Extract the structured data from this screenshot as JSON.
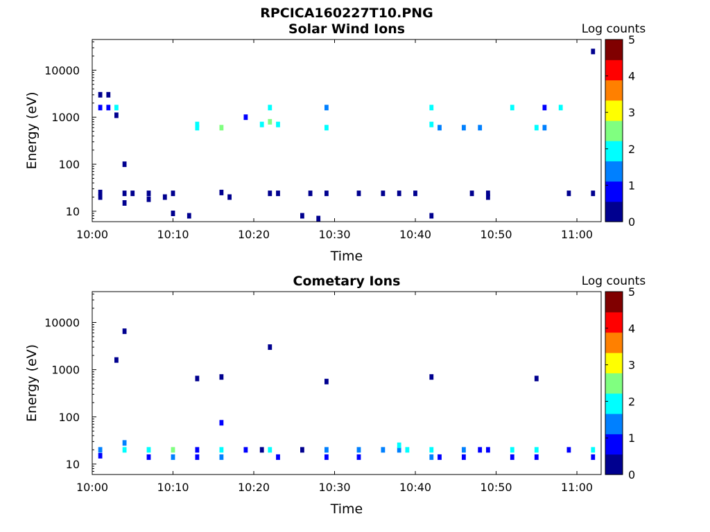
{
  "figure_title": "RPCICA160227T10.PNG",
  "palette": [
    "#00008f",
    "#0000ff",
    "#0080ff",
    "#00ffff",
    "#80ff80",
    "#ffff00",
    "#ff8000",
    "#ff0000",
    "#800000"
  ],
  "chart_data": [
    {
      "type": "heatmap",
      "title": "Solar Wind Ions",
      "xlabel": "Time",
      "ylabel": "Energy (eV)",
      "xticks": [
        "10:00",
        "10:10",
        "10:20",
        "10:30",
        "10:40",
        "10:50",
        "11:00"
      ],
      "yticks": [
        "10",
        "100",
        "1000",
        "10000"
      ],
      "yscale": "log",
      "xlim": [
        "10:00",
        "11:03"
      ],
      "ylim": [
        6,
        45000
      ],
      "colorbar_label": "Log counts",
      "colorbar_ticks": [
        "0",
        "1",
        "2",
        "3",
        "4",
        "5"
      ],
      "clim": [
        0,
        5
      ],
      "cells": [
        [
          "10:01",
          20,
          0.2
        ],
        [
          "10:01",
          25,
          0.3
        ],
        [
          "10:01",
          1600,
          1.0
        ],
        [
          "10:01",
          3000,
          0.2
        ],
        [
          "10:02",
          3000,
          0.2
        ],
        [
          "10:02",
          1600,
          0.8
        ],
        [
          "10:03",
          1600,
          1.9
        ],
        [
          "10:03",
          1100,
          0.3
        ],
        [
          "10:04",
          24,
          0.2
        ],
        [
          "10:04",
          15,
          0.2
        ],
        [
          "10:04",
          100,
          0.3
        ],
        [
          "10:05",
          24,
          0.5
        ],
        [
          "10:07",
          18,
          0.3
        ],
        [
          "10:07",
          24,
          0.3
        ],
        [
          "10:09",
          20,
          0.2
        ],
        [
          "10:10",
          24,
          0.5
        ],
        [
          "10:10",
          9,
          0.2
        ],
        [
          "10:12",
          8,
          0.2
        ],
        [
          "10:13",
          600,
          2.2
        ],
        [
          "10:13",
          700,
          1.8
        ],
        [
          "10:16",
          600,
          2.6
        ],
        [
          "10:16",
          25,
          0.4
        ],
        [
          "10:17",
          20,
          0.2
        ],
        [
          "10:19",
          1000,
          1.0
        ],
        [
          "10:21",
          700,
          1.7
        ],
        [
          "10:22",
          1600,
          1.9
        ],
        [
          "10:22",
          800,
          2.6
        ],
        [
          "10:22",
          24,
          0.4
        ],
        [
          "10:23",
          700,
          2.2
        ],
        [
          "10:23",
          24,
          0.5
        ],
        [
          "10:26",
          8,
          0.2
        ],
        [
          "10:27",
          24,
          0.3
        ],
        [
          "10:28",
          7,
          0.2
        ],
        [
          "10:29",
          600,
          2.0
        ],
        [
          "10:29",
          1600,
          1.4
        ],
        [
          "10:29",
          24,
          0.5
        ],
        [
          "10:33",
          24,
          0.4
        ],
        [
          "10:36",
          24,
          0.3
        ],
        [
          "10:38",
          24,
          0.4
        ],
        [
          "10:40",
          24,
          0.3
        ],
        [
          "10:42",
          1600,
          1.9
        ],
        [
          "10:42",
          700,
          2.2
        ],
        [
          "10:42",
          8,
          0.2
        ],
        [
          "10:43",
          600,
          1.5
        ],
        [
          "10:46",
          600,
          1.4
        ],
        [
          "10:47",
          24,
          0.4
        ],
        [
          "10:48",
          600,
          1.5
        ],
        [
          "10:49",
          20,
          0.2
        ],
        [
          "10:49",
          24,
          0.3
        ],
        [
          "10:52",
          1600,
          1.8
        ],
        [
          "10:55",
          600,
          2.0
        ],
        [
          "10:56",
          600,
          1.6
        ],
        [
          "10:56",
          1600,
          1.0
        ],
        [
          "10:58",
          1600,
          1.8
        ],
        [
          "10:59",
          24,
          0.3
        ],
        [
          "11:02",
          24,
          0.5
        ],
        [
          "11:02",
          25000,
          0.3
        ]
      ]
    },
    {
      "type": "heatmap",
      "title": "Cometary Ions",
      "xlabel": "Time",
      "ylabel": "Energy (eV)",
      "xticks": [
        "10:00",
        "10:10",
        "10:20",
        "10:30",
        "10:40",
        "10:50",
        "11:00"
      ],
      "yticks": [
        "10",
        "100",
        "1000",
        "10000"
      ],
      "yscale": "log",
      "xlim": [
        "10:00",
        "11:03"
      ],
      "ylim": [
        6,
        45000
      ],
      "colorbar_label": "Log counts",
      "colorbar_ticks": [
        "0",
        "1",
        "2",
        "3",
        "4",
        "5"
      ],
      "clim": [
        0,
        5
      ],
      "cells": [
        [
          "10:01",
          20,
          1.6
        ],
        [
          "10:01",
          15,
          0.8
        ],
        [
          "10:04",
          20,
          2.2
        ],
        [
          "10:04",
          28,
          1.5
        ],
        [
          "10:04",
          6500,
          0.3
        ],
        [
          "10:03",
          1600,
          0.2
        ],
        [
          "10:07",
          20,
          1.9
        ],
        [
          "10:07",
          14,
          1.0
        ],
        [
          "10:10",
          20,
          2.3
        ],
        [
          "10:10",
          14,
          1.2
        ],
        [
          "10:13",
          20,
          1.0
        ],
        [
          "10:13",
          14,
          0.6
        ],
        [
          "10:13",
          650,
          0.2
        ],
        [
          "10:16",
          20,
          2.0
        ],
        [
          "10:16",
          14,
          1.2
        ],
        [
          "10:16",
          75,
          0.8
        ],
        [
          "10:16",
          700,
          0.4
        ],
        [
          "10:19",
          20,
          0.6
        ],
        [
          "10:21",
          20,
          0.4
        ],
        [
          "10:22",
          20,
          2.1
        ],
        [
          "10:22",
          3000,
          0.4
        ],
        [
          "10:23",
          14,
          1.0
        ],
        [
          "10:26",
          20,
          0.5
        ],
        [
          "10:29",
          20,
          1.6
        ],
        [
          "10:29",
          14,
          0.8
        ],
        [
          "10:29",
          560,
          0.2
        ],
        [
          "10:33",
          20,
          1.3
        ],
        [
          "10:33",
          14,
          0.7
        ],
        [
          "10:36",
          20,
          1.2
        ],
        [
          "10:38",
          20,
          1.5
        ],
        [
          "10:38",
          25,
          2.2
        ],
        [
          "10:39",
          20,
          2.0
        ],
        [
          "10:42",
          20,
          1.8
        ],
        [
          "10:42",
          14,
          1.2
        ],
        [
          "10:42",
          700,
          0.4
        ],
        [
          "10:43",
          14,
          1.0
        ],
        [
          "10:46",
          20,
          1.6
        ],
        [
          "10:46",
          14,
          0.8
        ],
        [
          "10:48",
          20,
          0.6
        ],
        [
          "10:49",
          20,
          0.8
        ],
        [
          "10:52",
          20,
          1.8
        ],
        [
          "10:52",
          14,
          0.7
        ],
        [
          "10:55",
          20,
          1.9
        ],
        [
          "10:55",
          14,
          1.0
        ],
        [
          "10:55",
          650,
          0.3
        ],
        [
          "10:59",
          20,
          0.7
        ],
        [
          "11:02",
          20,
          2.0
        ],
        [
          "11:02",
          14,
          1.0
        ]
      ]
    }
  ]
}
